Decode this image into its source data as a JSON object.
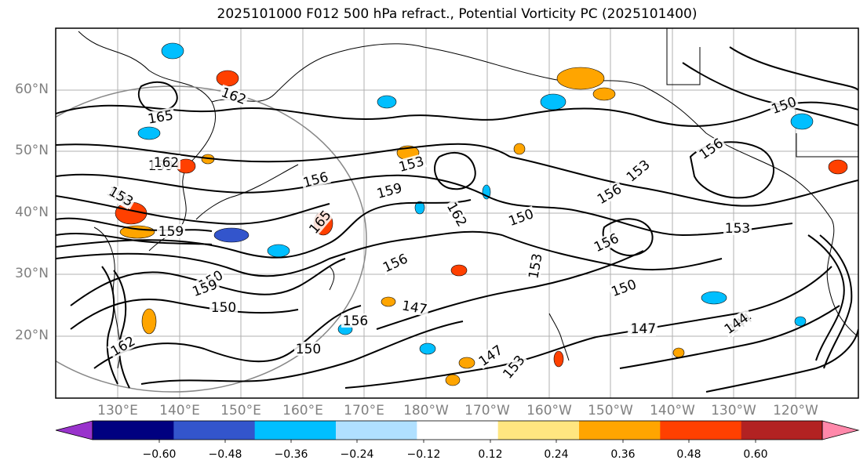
{
  "chart_data": {
    "type": "map-contour",
    "title": "2025101000 F012 500 hPa refract., Potential Vorticity PC (2025101400)",
    "lat_labels": [
      "60°N",
      "50°N",
      "40°N",
      "30°N",
      "20°N"
    ],
    "lon_labels": [
      "130°E",
      "140°E",
      "150°E",
      "160°E",
      "170°E",
      "180°W",
      "170°W",
      "160°W",
      "150°W",
      "140°W",
      "130°W",
      "120°W"
    ],
    "colorbar": {
      "ticks": [
        "−0.60",
        "−0.48",
        "−0.36",
        "−0.24",
        "−0.12",
        "0.12",
        "0.24",
        "0.36",
        "0.48",
        "0.60"
      ],
      "colors": [
        "#9933cc",
        "#000080",
        "#3355cc",
        "#00bfff",
        "#b0e0ff",
        "#ffffff",
        "#ffe680",
        "#ffa500",
        "#ff4000",
        "#b22222",
        "#ff88aa"
      ]
    },
    "contour_labels": [
      "165",
      "162",
      "159",
      "156",
      "153",
      "150",
      "147",
      "144",
      "159",
      "156",
      "153",
      "156",
      "153",
      "150",
      "159",
      "162",
      "165",
      "162",
      "156",
      "153",
      "150",
      "147",
      "153",
      "156",
      "150",
      "147",
      "150",
      "156",
      "159",
      "162",
      "156",
      "153",
      "150",
      "147",
      "144"
    ],
    "contour_levels": [
      144,
      147,
      150,
      153,
      156,
      159,
      162,
      165
    ]
  }
}
